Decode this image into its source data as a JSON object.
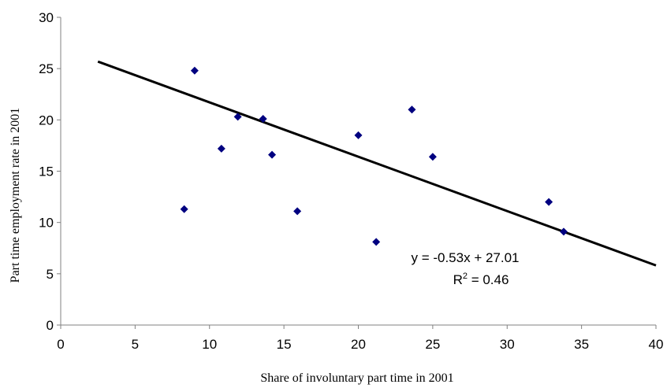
{
  "chart_data": {
    "type": "scatter",
    "title": "",
    "xlabel": "Share of involuntary part time in 2001",
    "ylabel": "Part time employment rate in 2001",
    "xlim": [
      0,
      40
    ],
    "ylim": [
      0,
      30
    ],
    "xticks": [
      "0",
      "5",
      "10",
      "15",
      "20",
      "25",
      "30",
      "35",
      "40"
    ],
    "yticks": [
      "0",
      "5",
      "10",
      "15",
      "20",
      "25",
      "30"
    ],
    "grid": false,
    "legend": "none",
    "colors": {
      "points": "#000080",
      "trendline": "#000000",
      "axis": "#808080"
    },
    "points": [
      {
        "x": 8.3,
        "y": 11.3
      },
      {
        "x": 9.0,
        "y": 24.8
      },
      {
        "x": 10.8,
        "y": 17.2
      },
      {
        "x": 11.9,
        "y": 20.3
      },
      {
        "x": 13.6,
        "y": 20.1
      },
      {
        "x": 14.2,
        "y": 16.6
      },
      {
        "x": 15.9,
        "y": 11.1
      },
      {
        "x": 20.0,
        "y": 18.5
      },
      {
        "x": 21.2,
        "y": 8.1
      },
      {
        "x": 23.6,
        "y": 21.0
      },
      {
        "x": 25.0,
        "y": 16.4
      },
      {
        "x": 32.8,
        "y": 12.0
      },
      {
        "x": 33.8,
        "y": 9.1
      }
    ],
    "trendline": {
      "slope": -0.53,
      "intercept": 27.01,
      "x_range": [
        2.5,
        40
      ]
    },
    "equation_label": "y = -0.53x + 27.01",
    "r2_label": "R",
    "r2_superscript": "2",
    "r2_value": " = 0.46"
  }
}
